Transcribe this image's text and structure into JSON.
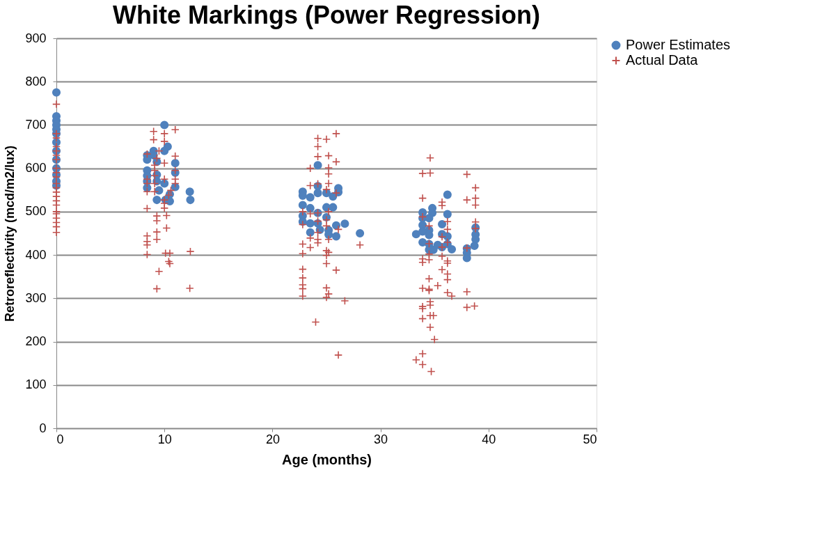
{
  "chart_data": {
    "type": "scatter",
    "title": "White Markings (Power Regression)",
    "xlabel": "Age (months)",
    "ylabel": "Retroreflectivity (mcd/m2/lux)",
    "xlim": [
      0,
      50
    ],
    "xticks": [
      0,
      10,
      20,
      30,
      40,
      50
    ],
    "ylim": [
      0,
      900
    ],
    "yticks": [
      0,
      100,
      200,
      300,
      400,
      500,
      600,
      700,
      800,
      900
    ],
    "grid": "y",
    "legend": "right",
    "series": [
      {
        "name": "Power Estimates",
        "color": "#4f81bd",
        "marker": "circle",
        "x": [
          0,
          0,
          0,
          0,
          0,
          0,
          0,
          0,
          0,
          0,
          0,
          0,
          0,
          10.0,
          10.3,
          10.0,
          9.0,
          8.4,
          8.4,
          9.0,
          9.3,
          11.0,
          8.4,
          8.4,
          9.3,
          9.3,
          8.4,
          8.4,
          10.0,
          11.0,
          11.0,
          9.5,
          9.3,
          10.1,
          10.5,
          10.5,
          12.35,
          12.4,
          24.2,
          22.8,
          22.8,
          23.5,
          24.2,
          24.2,
          25.0,
          25.6,
          26.1,
          26.1,
          22.8,
          23.5,
          24.2,
          25.0,
          25.6,
          22.8,
          22.8,
          23.5,
          24.2,
          25.0,
          23.5,
          24.4,
          25.2,
          25.2,
          25.9,
          25.9,
          26.7,
          28.1,
          36.2,
          33.9,
          34.8,
          34.8,
          36.2,
          33.9,
          34.5,
          33.9,
          35.7,
          33.3,
          33.9,
          34.5,
          34.5,
          35.7,
          36.2,
          33.9,
          34.5,
          35.3,
          34.5,
          34.9,
          35.7,
          36.6,
          36.2,
          38.0,
          38.0,
          38.0,
          38.8,
          38.8,
          38.8,
          38.7
        ],
        "values": [
          775,
          720,
          710,
          700,
          690,
          680,
          660,
          640,
          620,
          600,
          585,
          570,
          560,
          700,
          650,
          640,
          640,
          630,
          620,
          630,
          615,
          612,
          595,
          583,
          585,
          570,
          570,
          555,
          565,
          590,
          557,
          549,
          527,
          527,
          524,
          540,
          546,
          527,
          607,
          546,
          537,
          533,
          559,
          543,
          543,
          535,
          554,
          545,
          515,
          508,
          497,
          510,
          510,
          490,
          477,
          473,
          473,
          487,
          452,
          458,
          457,
          447,
          468,
          443,
          472,
          450,
          539,
          498,
          508,
          497,
          494,
          485,
          485,
          469,
          471,
          448,
          454,
          457,
          446,
          448,
          443,
          429,
          425,
          423,
          412,
          412,
          418,
          413,
          425,
          415,
          405,
          393,
          463,
          447,
          436,
          421
        ]
      },
      {
        "name": "Actual Data",
        "color": "#c0504d",
        "marker": "cross",
        "x": [
          0,
          0,
          0,
          0,
          0,
          0,
          0,
          0,
          0,
          0,
          0,
          0,
          0,
          0,
          0,
          0,
          0,
          0,
          0,
          0,
          0,
          0,
          9.0,
          10.0,
          11.0,
          9.0,
          10.0,
          9.5,
          8.4,
          11.0,
          9.3,
          10.0,
          9.1,
          9.1,
          11.0,
          8.4,
          10.0,
          9.1,
          11.0,
          8.4,
          11.0,
          9.1,
          8.4,
          9.1,
          10.6,
          10.4,
          10.0,
          10.0,
          10.0,
          8.4,
          9.3,
          10.2,
          9.3,
          10.2,
          9.3,
          8.4,
          9.3,
          8.4,
          8.4,
          8.4,
          10.1,
          10.5,
          12.4,
          10.4,
          10.5,
          9.5,
          9.3,
          12.35,
          25.9,
          24.2,
          25.0,
          24.2,
          24.2,
          25.2,
          25.9,
          23.5,
          25.2,
          25.2,
          23.5,
          24.2,
          25.2,
          25.0,
          25.9,
          22.8,
          23.5,
          24.2,
          25.2,
          24.2,
          25.0,
          22.8,
          25.0,
          26.1,
          24.2,
          23.5,
          24.2,
          25.2,
          24.2,
          22.8,
          23.5,
          28.1,
          22.8,
          25.0,
          25.2,
          25.0,
          25.0,
          25.9,
          22.8,
          22.8,
          22.8,
          22.8,
          22.8,
          25.0,
          25.2,
          25.0,
          26.7,
          24.0,
          26.1,
          34.6,
          33.9,
          34.6,
          38.0,
          38.8,
          33.9,
          38.8,
          38.0,
          35.7,
          35.7,
          38.8,
          33.9,
          38.8,
          36.2,
          34.5,
          38.8,
          36.2,
          35.7,
          36.2,
          34.5,
          35.7,
          38.0,
          34.5,
          33.9,
          34.5,
          33.9,
          35.7,
          36.2,
          36.2,
          35.7,
          36.2,
          36.2,
          35.3,
          34.5,
          33.9,
          34.5,
          34.5,
          38.0,
          36.2,
          36.6,
          34.6,
          34.6,
          33.9,
          33.9,
          38.7,
          38.0,
          34.6,
          34.9,
          33.9,
          34.6,
          35.0,
          33.9,
          33.3,
          33.9,
          34.7
        ],
        "values": [
          748,
          680,
          670,
          650,
          640,
          630,
          620,
          600,
          590,
          580,
          565,
          555,
          545,
          535,
          525,
          515,
          500,
          495,
          485,
          475,
          465,
          452,
          685,
          680,
          689,
          666,
          662,
          640,
          633,
          628,
          623,
          612,
          607,
          595,
          595,
          575,
          575,
          583,
          575,
          565,
          565,
          565,
          546,
          546,
          549,
          538,
          527,
          519,
          508,
          507,
          490,
          491,
          479,
          462,
          453,
          444,
          436,
          431,
          423,
          401,
          404,
          404,
          408,
          385,
          380,
          362,
          322,
          323,
          680,
          669,
          667,
          650,
          627,
          629,
          615,
          600,
          601,
          587,
          560,
          564,
          565,
          551,
          543,
          500,
          495,
          497,
          500,
          478,
          481,
          470,
          467,
          459,
          452,
          439,
          436,
          436,
          428,
          425,
          417,
          423,
          403,
          410,
          406,
          399,
          380,
          365,
          367,
          347,
          331,
          322,
          305,
          324,
          310,
          302,
          294,
          245,
          169,
          624,
          588,
          589,
          586,
          555,
          531,
          531,
          527,
          522,
          514,
          515,
          488,
          476,
          477,
          467,
          461,
          459,
          442,
          429,
          426,
          418,
          416,
          402,
          391,
          389,
          383,
          397,
          386,
          381,
          366,
          356,
          343,
          329,
          345,
          323,
          321,
          318,
          315,
          313,
          305,
          292,
          284,
          281,
          276,
          282,
          279,
          260,
          260,
          253,
          233,
          205,
          172,
          158,
          147,
          131
        ]
      }
    ]
  }
}
